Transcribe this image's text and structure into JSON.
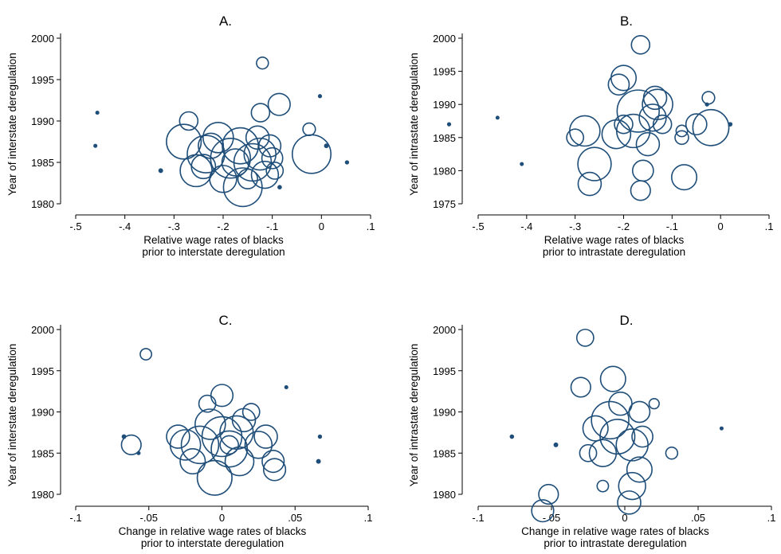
{
  "colors": {
    "marker": "#1f4e79",
    "axis": "#000000",
    "background": "#ffffff"
  },
  "chart_data": [
    {
      "type": "scatter",
      "title": "A.",
      "xlabel": [
        "Relative wage rates of blacks",
        "prior to interstate deregulation"
      ],
      "ylabel": "Year of interstate deregulation",
      "xlim": [
        -0.5,
        0.1
      ],
      "ylim": [
        1980,
        2000
      ],
      "xticks": [
        -0.5,
        -0.4,
        -0.3,
        -0.2,
        -0.1,
        0,
        0.1
      ],
      "xtick_labels": [
        "-.5",
        "-.4",
        "-.3",
        "-.2",
        "-.1",
        "0",
        ".1"
      ],
      "yticks": [
        1980,
        1985,
        1990,
        1995,
        2000
      ],
      "ytick_labels": [
        "1980",
        "1985",
        "1990",
        "1995",
        "2000"
      ],
      "marker_size_note": "bubble size proportional to weight",
      "points": [
        {
          "x": -0.456,
          "y": 1991,
          "s": 0.6
        },
        {
          "x": -0.46,
          "y": 1987,
          "s": 0.6
        },
        {
          "x": -0.327,
          "y": 1984,
          "s": 1.3
        },
        {
          "x": -0.12,
          "y": 1997,
          "s": 2.2
        },
        {
          "x": -0.003,
          "y": 1993,
          "s": 0.7
        },
        {
          "x": -0.086,
          "y": 1992,
          "s": 9
        },
        {
          "x": -0.025,
          "y": 1989,
          "s": 2.5
        },
        {
          "x": -0.124,
          "y": 1991,
          "s": 6
        },
        {
          "x": 0.052,
          "y": 1985,
          "s": 0.8
        },
        {
          "x": 0.01,
          "y": 1987,
          "s": 1.2
        },
        {
          "x": -0.085,
          "y": 1982,
          "s": 1
        },
        {
          "x": -0.02,
          "y": 1986,
          "s": 30
        },
        {
          "x": -0.28,
          "y": 1987.5,
          "s": 24
        },
        {
          "x": -0.27,
          "y": 1990,
          "s": 6
        },
        {
          "x": -0.235,
          "y": 1986,
          "s": 28
        },
        {
          "x": -0.255,
          "y": 1984,
          "s": 20
        },
        {
          "x": -0.21,
          "y": 1988,
          "s": 18
        },
        {
          "x": -0.185,
          "y": 1985.5,
          "s": 32
        },
        {
          "x": -0.16,
          "y": 1982,
          "s": 30
        },
        {
          "x": -0.165,
          "y": 1987,
          "s": 26
        },
        {
          "x": -0.14,
          "y": 1985,
          "s": 28
        },
        {
          "x": -0.125,
          "y": 1986,
          "s": 20
        },
        {
          "x": -0.115,
          "y": 1983.5,
          "s": 14
        },
        {
          "x": -0.105,
          "y": 1987,
          "s": 9
        },
        {
          "x": -0.2,
          "y": 1983,
          "s": 14
        },
        {
          "x": -0.225,
          "y": 1987,
          "s": 12
        },
        {
          "x": -0.13,
          "y": 1988,
          "s": 10
        },
        {
          "x": -0.1,
          "y": 1985.5,
          "s": 8
        },
        {
          "x": -0.095,
          "y": 1984,
          "s": 5
        },
        {
          "x": -0.24,
          "y": 1984.5,
          "s": 11
        },
        {
          "x": -0.175,
          "y": 1985,
          "s": 14
        },
        {
          "x": -0.15,
          "y": 1983,
          "s": 7
        }
      ]
    },
    {
      "type": "scatter",
      "title": "B.",
      "xlabel": [
        "Relative wage rates of blacks",
        "prior to intrastate deregulation"
      ],
      "ylabel": "Year of intrastate deregulation",
      "xlim": [
        -0.58,
        0.1
      ],
      "ylim": [
        1975,
        2000
      ],
      "xticks": [
        -0.5,
        -0.4,
        -0.3,
        -0.2,
        -0.1,
        0,
        0.1
      ],
      "xtick_labels": [
        "-.5",
        "-.4",
        "-.3",
        "-.2",
        "-.1",
        "0",
        ".1"
      ],
      "yticks": [
        1975,
        1980,
        1985,
        1990,
        1995,
        2000
      ],
      "ytick_labels": [
        "1975",
        "1980",
        "1985",
        "1990",
        "1995",
        "2000"
      ],
      "marker_size_note": "bubble size proportional to weight",
      "points": [
        {
          "x": -0.56,
          "y": 1987,
          "s": 0.7
        },
        {
          "x": -0.46,
          "y": 1988,
          "s": 0.5
        },
        {
          "x": -0.41,
          "y": 1981,
          "s": 0.5
        },
        {
          "x": -0.165,
          "y": 1999,
          "s": 6
        },
        {
          "x": -0.025,
          "y": 1991,
          "s": 2.5
        },
        {
          "x": -0.028,
          "y": 1990,
          "s": 0.7
        },
        {
          "x": 0.02,
          "y": 1987,
          "s": 1
        },
        {
          "x": -0.05,
          "y": 1987,
          "s": 8
        },
        {
          "x": -0.02,
          "y": 1986.5,
          "s": 26
        },
        {
          "x": -0.08,
          "y": 1986,
          "s": 2
        },
        {
          "x": -0.08,
          "y": 1985,
          "s": 3
        },
        {
          "x": -0.075,
          "y": 1979,
          "s": 12
        },
        {
          "x": -0.165,
          "y": 1977,
          "s": 7
        },
        {
          "x": -0.17,
          "y": 1989,
          "s": 36
        },
        {
          "x": -0.2,
          "y": 1994,
          "s": 12
        },
        {
          "x": -0.21,
          "y": 1993,
          "s": 8
        },
        {
          "x": -0.2,
          "y": 1987,
          "s": 6
        },
        {
          "x": -0.28,
          "y": 1986,
          "s": 18
        },
        {
          "x": -0.26,
          "y": 1981,
          "s": 22
        },
        {
          "x": -0.27,
          "y": 1978,
          "s": 10
        },
        {
          "x": -0.3,
          "y": 1985,
          "s": 5
        },
        {
          "x": -0.13,
          "y": 1990,
          "s": 18
        },
        {
          "x": -0.14,
          "y": 1988,
          "s": 14
        },
        {
          "x": -0.15,
          "y": 1984,
          "s": 10
        },
        {
          "x": -0.16,
          "y": 1980,
          "s": 8
        },
        {
          "x": -0.12,
          "y": 1987,
          "s": 6
        },
        {
          "x": -0.135,
          "y": 1991,
          "s": 10
        },
        {
          "x": -0.215,
          "y": 1985.5,
          "s": 16
        },
        {
          "x": -0.18,
          "y": 1986,
          "s": 22
        }
      ]
    },
    {
      "type": "scatter",
      "title": "C.",
      "xlabel": [
        "Change in relative wage rates of blacks",
        "prior to interstate deregulation"
      ],
      "ylabel": "Year of interstate deregulation",
      "xlim": [
        -0.1,
        0.1
      ],
      "ylim": [
        1980,
        2000
      ],
      "xticks": [
        -0.1,
        -0.05,
        0,
        0.05,
        0.1
      ],
      "xtick_labels": [
        "-.1",
        "-.05",
        "0",
        ".05",
        ".1"
      ],
      "yticks": [
        1980,
        1985,
        1990,
        1995,
        2000
      ],
      "ytick_labels": [
        "1980",
        "1985",
        "1990",
        "1995",
        "2000"
      ],
      "marker_size_note": "bubble size proportional to weight",
      "points": [
        {
          "x": -0.067,
          "y": 1987,
          "s": 1.2
        },
        {
          "x": -0.062,
          "y": 1986,
          "s": 7
        },
        {
          "x": -0.057,
          "y": 1985,
          "s": 0.6
        },
        {
          "x": -0.052,
          "y": 1997,
          "s": 2
        },
        {
          "x": 0.044,
          "y": 1993,
          "s": 0.6
        },
        {
          "x": 0.067,
          "y": 1987,
          "s": 0.8
        },
        {
          "x": 0.066,
          "y": 1984,
          "s": 1.3
        },
        {
          "x": 0,
          "y": 1992,
          "s": 9
        },
        {
          "x": 0.02,
          "y": 1990,
          "s": 5
        },
        {
          "x": 0.035,
          "y": 1984,
          "s": 9
        },
        {
          "x": 0.036,
          "y": 1983,
          "s": 9
        },
        {
          "x": -0.01,
          "y": 1991,
          "s": 5
        },
        {
          "x": -0.005,
          "y": 1982,
          "s": 24
        },
        {
          "x": -0.015,
          "y": 1986,
          "s": 28
        },
        {
          "x": 0,
          "y": 1987,
          "s": 32
        },
        {
          "x": 0.005,
          "y": 1985.5,
          "s": 26
        },
        {
          "x": 0.01,
          "y": 1987.5,
          "s": 22
        },
        {
          "x": -0.025,
          "y": 1986,
          "s": 18
        },
        {
          "x": 0.025,
          "y": 1986,
          "s": 14
        },
        {
          "x": 0.03,
          "y": 1987,
          "s": 10
        },
        {
          "x": -0.02,
          "y": 1984,
          "s": 12
        },
        {
          "x": 0.012,
          "y": 1984,
          "s": 16
        },
        {
          "x": -0.008,
          "y": 1988.5,
          "s": 18
        },
        {
          "x": 0.015,
          "y": 1989,
          "s": 10
        },
        {
          "x": -0.03,
          "y": 1987,
          "s": 10
        },
        {
          "x": 0.005,
          "y": 1986,
          "s": 6
        }
      ]
    },
    {
      "type": "scatter",
      "title": "D.",
      "xlabel": [
        "Change in relative wage rates of blacks",
        "prior to intrastate deregulation"
      ],
      "ylabel": "Year of intrastate deregulation",
      "xlim": [
        -0.1,
        0.1
      ],
      "ylim": [
        1978,
        2000
      ],
      "xticks": [
        -0.1,
        -0.05,
        0,
        0.05,
        0.1
      ],
      "xtick_labels": [
        "-.1",
        "-.05",
        "0",
        ".05",
        ".1"
      ],
      "yticks": [
        1980,
        1985,
        1990,
        1995,
        2000
      ],
      "ytick_labels": [
        "1980",
        "1985",
        "1990",
        "1995",
        "2000"
      ],
      "marker_size_note": "bubble size proportional to weight",
      "points": [
        {
          "x": -0.077,
          "y": 1987,
          "s": 1
        },
        {
          "x": -0.047,
          "y": 1986,
          "s": 1.3
        },
        {
          "x": -0.056,
          "y": 1978,
          "s": 9
        },
        {
          "x": -0.052,
          "y": 1980,
          "s": 7
        },
        {
          "x": -0.027,
          "y": 1999,
          "s": 5
        },
        {
          "x": -0.03,
          "y": 1993,
          "s": 7
        },
        {
          "x": -0.008,
          "y": 1994,
          "s": 12
        },
        {
          "x": 0.02,
          "y": 1991,
          "s": 1.5
        },
        {
          "x": 0.032,
          "y": 1985,
          "s": 2.2
        },
        {
          "x": 0.066,
          "y": 1988,
          "s": 0.5
        },
        {
          "x": 0.003,
          "y": 1979,
          "s": 10
        },
        {
          "x": -0.015,
          "y": 1981,
          "s": 2
        },
        {
          "x": -0.01,
          "y": 1989,
          "s": 28
        },
        {
          "x": -0.005,
          "y": 1987,
          "s": 24
        },
        {
          "x": 0.005,
          "y": 1986,
          "s": 20
        },
        {
          "x": -0.015,
          "y": 1985,
          "s": 14
        },
        {
          "x": -0.02,
          "y": 1988,
          "s": 12
        },
        {
          "x": 0.01,
          "y": 1983,
          "s": 12
        },
        {
          "x": 0.005,
          "y": 1981,
          "s": 14
        },
        {
          "x": -0.025,
          "y": 1985,
          "s": 5
        },
        {
          "x": 0.012,
          "y": 1987,
          "s": 8
        },
        {
          "x": -0.003,
          "y": 1991,
          "s": 10
        },
        {
          "x": 0.01,
          "y": 1990,
          "s": 8
        }
      ]
    }
  ]
}
